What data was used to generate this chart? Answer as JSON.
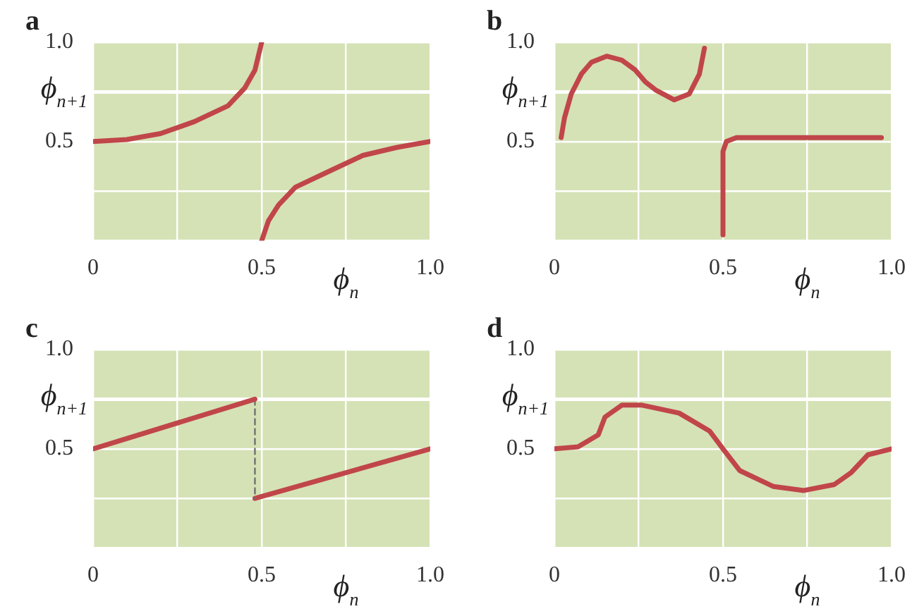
{
  "chart_data": [
    {
      "type": "line",
      "title": "a",
      "xlabel": "ϕ$_{n}$",
      "ylabel": "ϕ$_{n+1}$",
      "xlim": [
        0,
        1
      ],
      "ylim": [
        0,
        1
      ],
      "xticks": [
        {
          "value": 0,
          "label": "0"
        },
        {
          "value": 0.25,
          "label": null
        },
        {
          "value": 0.5,
          "label": "0.5"
        },
        {
          "value": 0.75,
          "label": null
        },
        {
          "value": 1,
          "label": "1.0"
        }
      ],
      "yticks": [
        {
          "value": 0,
          "label": null
        },
        {
          "value": 0.25,
          "label": null
        },
        {
          "value": 0.5,
          "label": "0.5"
        },
        {
          "value": 0.75,
          "label": null
        },
        {
          "value": 1,
          "label": "1.0"
        }
      ],
      "grid": true,
      "legend": false,
      "marker": "none",
      "ref_lines": [
        {
          "axis": "y",
          "value": 0.75,
          "color": "#ffffff"
        }
      ],
      "series": [
        {
          "color": "#c0464a",
          "x": [
            0,
            0.1,
            0.2,
            0.3,
            0.4,
            0.45,
            0.48,
            0.5
          ],
          "values": [
            0.5,
            0.51,
            0.54,
            0.6,
            0.68,
            0.77,
            0.86,
            1
          ]
        },
        {
          "color": "#c0464a",
          "x": [
            0.5,
            0.52,
            0.55,
            0.6,
            0.7,
            0.8,
            0.9,
            1
          ],
          "values": [
            0,
            0.1,
            0.18,
            0.27,
            0.35,
            0.43,
            0.47,
            0.5
          ]
        }
      ]
    },
    {
      "type": "line",
      "title": "b",
      "xlabel": "ϕ$_{n}$",
      "ylabel": "ϕ$_{n+1}$",
      "xlim": [
        0,
        1
      ],
      "ylim": [
        0,
        1
      ],
      "xticks": [
        {
          "value": 0,
          "label": "0"
        },
        {
          "value": 0.25,
          "label": null
        },
        {
          "value": 0.5,
          "label": "0.5"
        },
        {
          "value": 0.75,
          "label": null
        },
        {
          "value": 1,
          "label": "1.0"
        }
      ],
      "yticks": [
        {
          "value": 0,
          "label": null
        },
        {
          "value": 0.25,
          "label": null
        },
        {
          "value": 0.5,
          "label": "0.5"
        },
        {
          "value": 0.75,
          "label": null
        },
        {
          "value": 1,
          "label": "1.0"
        }
      ],
      "grid": true,
      "legend": false,
      "marker": "none",
      "ref_lines": [
        {
          "axis": "y",
          "value": 0.75,
          "color": "#ffffff"
        }
      ],
      "series": [
        {
          "color": "#c0464a",
          "x": [
            0.02,
            0.03,
            0.05,
            0.08,
            0.11,
            0.155,
            0.2,
            0.24,
            0.27,
            0.3,
            0.355,
            0.4,
            0.43,
            0.445
          ],
          "values": [
            0.52,
            0.62,
            0.74,
            0.84,
            0.9,
            0.93,
            0.91,
            0.86,
            0.8,
            0.76,
            0.71,
            0.74,
            0.84,
            0.97
          ]
        },
        {
          "color": "#c0464a",
          "x": [
            0.5,
            0.5,
            0.51,
            0.54,
            0.97
          ],
          "values": [
            0.03,
            0.45,
            0.5,
            0.52,
            0.52
          ]
        }
      ]
    },
    {
      "type": "line",
      "title": "c",
      "xlabel": "ϕ$_{n}$",
      "ylabel": "ϕ$_{n+1}$",
      "xlim": [
        0,
        1
      ],
      "ylim": [
        0,
        1
      ],
      "xticks": [
        {
          "value": 0,
          "label": "0"
        },
        {
          "value": 0.25,
          "label": null
        },
        {
          "value": 0.5,
          "label": "0.5"
        },
        {
          "value": 0.75,
          "label": null
        },
        {
          "value": 1,
          "label": "1.0"
        }
      ],
      "yticks": [
        {
          "value": 0,
          "label": null
        },
        {
          "value": 0.25,
          "label": null
        },
        {
          "value": 0.5,
          "label": "0.5"
        },
        {
          "value": 0.75,
          "label": null
        },
        {
          "value": 1,
          "label": "1.0"
        }
      ],
      "grid": true,
      "legend": false,
      "marker": "none",
      "ref_lines": [
        {
          "axis": "y",
          "value": 0.75,
          "color": "#ffffff"
        }
      ],
      "series": [
        {
          "color": "#c0464a",
          "x": [
            0,
            0.48
          ],
          "values": [
            0.5,
            0.75
          ]
        },
        {
          "color": "#707070",
          "line_style": "dashed",
          "x": [
            0.48,
            0.48
          ],
          "values": [
            0.75,
            0.25
          ]
        },
        {
          "color": "#c0464a",
          "x": [
            0.48,
            1
          ],
          "values": [
            0.25,
            0.5
          ]
        }
      ]
    },
    {
      "type": "line",
      "title": "d",
      "xlabel": "ϕ$_{n}$",
      "ylabel": "ϕ$_{n+1}$",
      "xlim": [
        0,
        1
      ],
      "ylim": [
        0,
        1
      ],
      "xticks": [
        {
          "value": 0,
          "label": "0"
        },
        {
          "value": 0.25,
          "label": null
        },
        {
          "value": 0.5,
          "label": "0.5"
        },
        {
          "value": 0.75,
          "label": null
        },
        {
          "value": 1,
          "label": "1.0"
        }
      ],
      "yticks": [
        {
          "value": 0,
          "label": null
        },
        {
          "value": 0.25,
          "label": null
        },
        {
          "value": 0.5,
          "label": "0.5"
        },
        {
          "value": 0.75,
          "label": null
        },
        {
          "value": 1,
          "label": "1.0"
        }
      ],
      "grid": true,
      "legend": false,
      "marker": "none",
      "ref_lines": [
        {
          "axis": "y",
          "value": 0.75,
          "color": "#ffffff"
        }
      ],
      "series": [
        {
          "color": "#c0464a",
          "x": [
            0,
            0.07,
            0.13,
            0.15,
            0.2,
            0.26,
            0.37,
            0.46,
            0.5,
            0.55,
            0.65,
            0.74,
            0.83,
            0.88,
            0.93,
            1
          ],
          "values": [
            0.5,
            0.51,
            0.57,
            0.66,
            0.72,
            0.72,
            0.68,
            0.59,
            0.5,
            0.39,
            0.31,
            0.29,
            0.32,
            0.38,
            0.47,
            0.5
          ]
        }
      ]
    }
  ]
}
